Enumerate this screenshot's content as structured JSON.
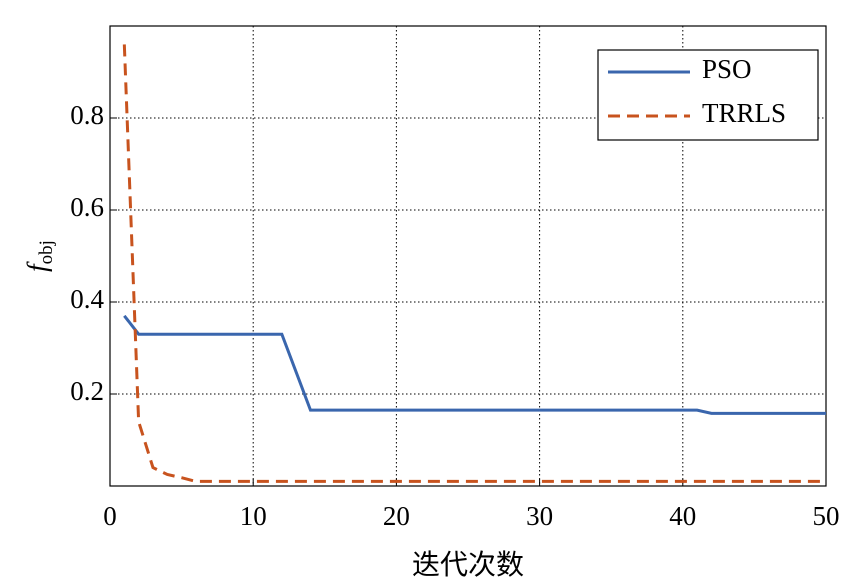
{
  "chart_data": {
    "type": "line",
    "xlabel": "迭代次数",
    "ylabel": {
      "base": "f",
      "sub": "obj"
    },
    "series": [
      {
        "name": "PSO",
        "color": "#3a66ad",
        "dash": false,
        "x": [
          1,
          2,
          12,
          14,
          41,
          42,
          50
        ],
        "values": [
          0.37,
          0.33,
          0.33,
          0.165,
          0.165,
          0.158,
          0.158
        ]
      },
      {
        "name": "TRRLS",
        "color": "#c8531e",
        "dash": true,
        "x": [
          1,
          2,
          3,
          4,
          5,
          6,
          50
        ],
        "values": [
          0.96,
          0.14,
          0.04,
          0.025,
          0.018,
          0.01,
          0.01
        ]
      }
    ],
    "xlim": [
      0,
      50
    ],
    "xticks": [
      0,
      10,
      20,
      30,
      40,
      50
    ],
    "ylim": [
      0,
      1
    ],
    "yticks": [
      0.2,
      0.4,
      0.6,
      0.8
    ],
    "grid": true,
    "legend": "upper right"
  }
}
